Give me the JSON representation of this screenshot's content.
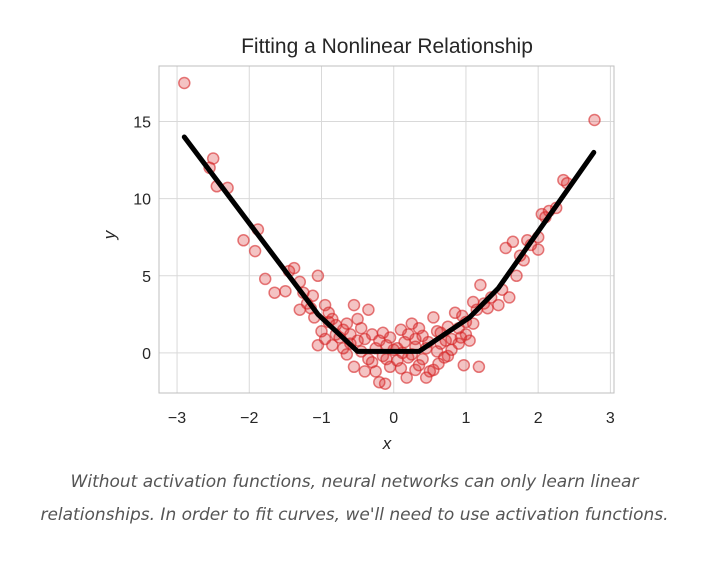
{
  "chart_data": {
    "type": "scatter",
    "title": "Fitting a Nonlinear Relationship",
    "xlabel": "x",
    "ylabel": "y",
    "xlim": [
      -3.25,
      3.05
    ],
    "ylim": [
      -2.6,
      18.6
    ],
    "xticks": [
      -3,
      -2,
      -1,
      0,
      1,
      2,
      3
    ],
    "xtick_labels": [
      "−3",
      "−2",
      "−1",
      "0",
      "1",
      "2",
      "3"
    ],
    "yticks": [
      0,
      5,
      10,
      15
    ],
    "ytick_labels": [
      "0",
      "5",
      "10",
      "15"
    ],
    "grid": true,
    "colors": {
      "points": "#d62728",
      "line": "#000000",
      "grid": "#d9d9d9",
      "frame": "#bfbfbf"
    },
    "series": [
      {
        "kind": "scatter",
        "points": [
          [
            -2.9,
            17.5
          ],
          [
            -2.5,
            12.6
          ],
          [
            -2.55,
            12.0
          ],
          [
            -2.45,
            10.8
          ],
          [
            -2.3,
            10.7
          ],
          [
            -2.08,
            7.3
          ],
          [
            -1.88,
            8.0
          ],
          [
            -1.92,
            6.6
          ],
          [
            -1.78,
            4.8
          ],
          [
            -1.65,
            3.9
          ],
          [
            -1.45,
            5.3
          ],
          [
            -1.38,
            5.5
          ],
          [
            -1.3,
            4.6
          ],
          [
            -1.5,
            4.0
          ],
          [
            -1.25,
            3.9
          ],
          [
            -1.12,
            3.7
          ],
          [
            -1.05,
            5.0
          ],
          [
            -1.2,
            3.2
          ],
          [
            -1.3,
            2.8
          ],
          [
            -1.15,
            2.9
          ],
          [
            -1.1,
            2.3
          ],
          [
            -0.95,
            3.1
          ],
          [
            -0.9,
            2.6
          ],
          [
            -0.85,
            2.2
          ],
          [
            -0.8,
            1.8
          ],
          [
            -1.0,
            1.4
          ],
          [
            -1.05,
            0.5
          ],
          [
            -0.95,
            0.9
          ],
          [
            -0.75,
            1.0
          ],
          [
            -0.7,
            1.5
          ],
          [
            -0.6,
            1.2
          ],
          [
            -0.55,
            3.1
          ],
          [
            -0.5,
            2.2
          ],
          [
            -0.45,
            1.6
          ],
          [
            -0.4,
            0.9
          ],
          [
            -0.35,
            2.8
          ],
          [
            -0.3,
            1.2
          ],
          [
            -0.25,
            0.3
          ],
          [
            -0.2,
            0.8
          ],
          [
            -0.15,
            -0.2
          ],
          [
            -0.1,
            0.5
          ],
          [
            -0.05,
            1.0
          ],
          [
            0.0,
            0.2
          ],
          [
            0.05,
            -0.5
          ],
          [
            0.1,
            1.5
          ],
          [
            0.15,
            0.7
          ],
          [
            0.2,
            -0.3
          ],
          [
            0.25,
            1.9
          ],
          [
            0.3,
            0.4
          ],
          [
            0.35,
            -0.8
          ],
          [
            0.4,
            1.1
          ],
          [
            0.45,
            0.3
          ],
          [
            0.5,
            -1.2
          ],
          [
            0.55,
            2.3
          ],
          [
            0.6,
            1.4
          ],
          [
            0.65,
            0.6
          ],
          [
            0.7,
            -0.3
          ],
          [
            0.75,
            1.7
          ],
          [
            0.8,
            0.9
          ],
          [
            0.85,
            2.6
          ],
          [
            0.9,
            1.6
          ],
          [
            0.95,
            2.4
          ],
          [
            0.97,
            -0.8
          ],
          [
            1.0,
            1.2
          ],
          [
            1.05,
            0.8
          ],
          [
            1.1,
            3.3
          ],
          [
            1.15,
            2.8
          ],
          [
            1.18,
            -0.9
          ],
          [
            1.2,
            4.4
          ],
          [
            1.25,
            3.2
          ],
          [
            1.3,
            2.9
          ],
          [
            1.35,
            3.6
          ],
          [
            1.45,
            3.1
          ],
          [
            1.5,
            4.1
          ],
          [
            1.55,
            6.8
          ],
          [
            1.6,
            3.6
          ],
          [
            1.65,
            7.2
          ],
          [
            1.7,
            5.0
          ],
          [
            1.75,
            6.3
          ],
          [
            1.8,
            6.0
          ],
          [
            1.85,
            7.3
          ],
          [
            1.9,
            7.0
          ],
          [
            2.0,
            7.5
          ],
          [
            2.05,
            9.0
          ],
          [
            2.1,
            8.8
          ],
          [
            2.15,
            9.2
          ],
          [
            2.0,
            6.7
          ],
          [
            2.25,
            9.4
          ],
          [
            2.35,
            11.2
          ],
          [
            2.4,
            11.0
          ],
          [
            2.78,
            15.1
          ],
          [
            -0.65,
            -0.1
          ],
          [
            -0.3,
            -0.6
          ],
          [
            0.1,
            -1.0
          ],
          [
            -0.1,
            -0.4
          ],
          [
            0.6,
            0.1
          ],
          [
            0.3,
            0.9
          ],
          [
            -0.55,
            -0.9
          ],
          [
            -0.4,
            -1.2
          ],
          [
            -0.2,
            -1.9
          ],
          [
            -0.12,
            -2.0
          ],
          [
            0.18,
            -1.6
          ],
          [
            0.3,
            -1.1
          ],
          [
            0.45,
            -1.6
          ],
          [
            0.55,
            -1.1
          ],
          [
            0.72,
            0.8
          ],
          [
            -0.85,
            0.5
          ],
          [
            -0.45,
            0.1
          ],
          [
            -0.05,
            -0.9
          ],
          [
            0.05,
            0.3
          ],
          [
            0.4,
            -0.4
          ],
          [
            0.62,
            -0.7
          ],
          [
            0.8,
            0.2
          ],
          [
            0.9,
            0.6
          ],
          [
            -0.7,
            0.3
          ],
          [
            -0.35,
            -0.4
          ],
          [
            0.25,
            -0.1
          ],
          [
            -0.6,
            0.6
          ],
          [
            0.2,
            1.2
          ],
          [
            -0.25,
            -1.2
          ],
          [
            0.75,
            -0.2
          ],
          [
            1.0,
            2.0
          ],
          [
            1.1,
            1.9
          ],
          [
            0.93,
            1.0
          ],
          [
            -0.15,
            1.3
          ],
          [
            0.35,
            1.6
          ],
          [
            0.65,
            1.3
          ],
          [
            -0.8,
            1.2
          ],
          [
            -0.9,
            2.0
          ],
          [
            -0.65,
            1.9
          ],
          [
            -0.5,
            0.8
          ],
          [
            0.12,
            0.0
          ],
          [
            0.48,
            0.7
          ]
        ]
      },
      {
        "kind": "line",
        "points": [
          [
            -2.9,
            14.0
          ],
          [
            -1.05,
            2.5
          ],
          [
            -0.5,
            0.1
          ],
          [
            0.35,
            0.1
          ],
          [
            1.05,
            2.3
          ],
          [
            1.45,
            4.2
          ],
          [
            2.77,
            13.0
          ]
        ]
      }
    ]
  },
  "caption": "Without activation functions, neural networks can only learn linear relationships. In order to fit curves, we'll need to use activation functions."
}
